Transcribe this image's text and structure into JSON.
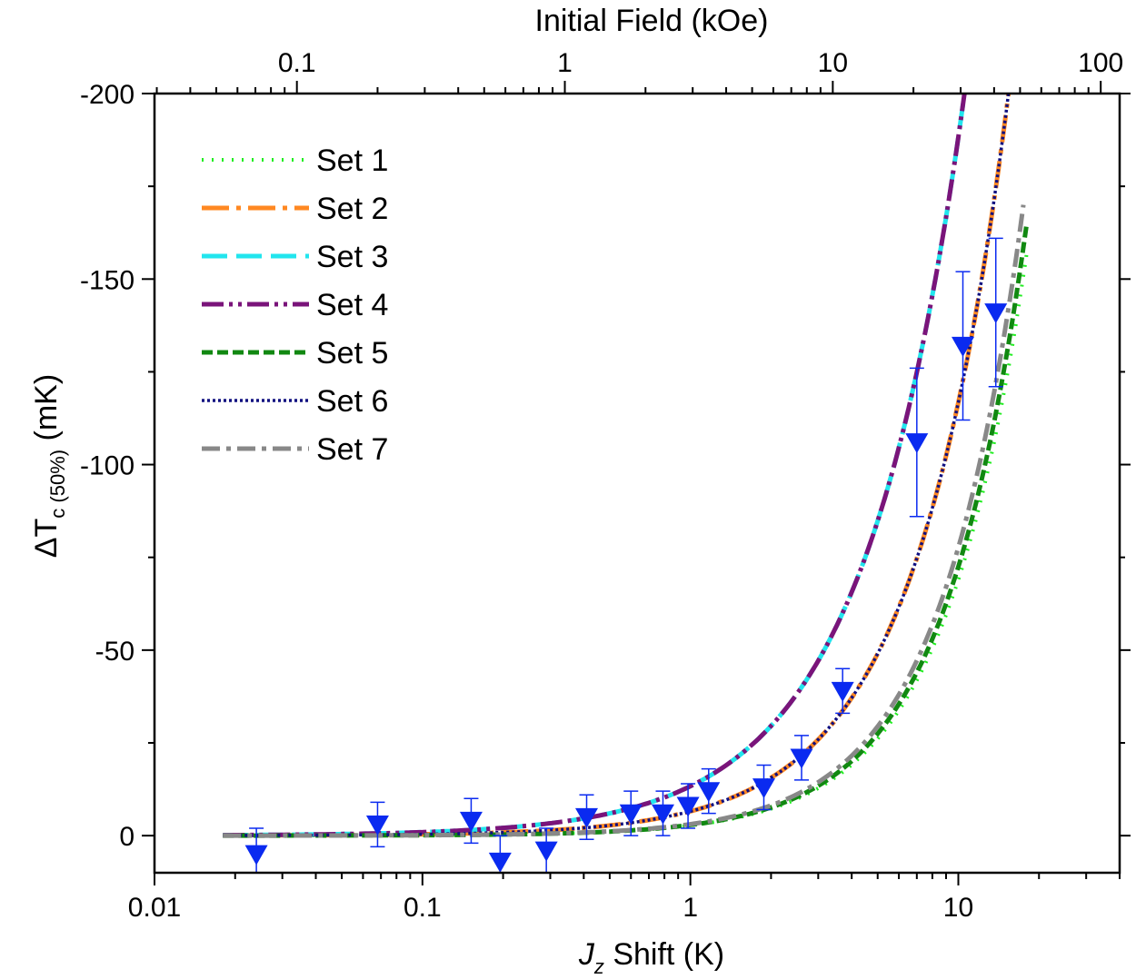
{
  "chart_data": {
    "type": "scatter",
    "x_scale": "log",
    "xlim": [
      0.01,
      40
    ],
    "ylim": [
      10,
      -200
    ],
    "y_inverted": true,
    "xlabel": {
      "italic": "J",
      "sub": "z",
      "rest": " Shift (K)"
    },
    "top_xlabel": "Initial Field (kOe)",
    "ylabel": {
      "delta": "Δ",
      "main": "T",
      "sub": "c (50%)",
      "rest": " (mK)"
    },
    "x_ticks": [
      {
        "value": 0.01,
        "label": "0.01"
      },
      {
        "value": 0.1,
        "label": "0.1"
      },
      {
        "value": 1,
        "label": "1"
      },
      {
        "value": 10,
        "label": "10"
      }
    ],
    "y_ticks": [
      {
        "value": 0,
        "label": "0"
      },
      {
        "value": -50,
        "label": "-50"
      },
      {
        "value": -100,
        "label": "-100"
      },
      {
        "value": -150,
        "label": "-150"
      },
      {
        "value": -200,
        "label": "-200"
      }
    ],
    "top_ticks": [
      {
        "field_kOe": 0.1,
        "x_shift": 0.034,
        "label": "0.1"
      },
      {
        "field_kOe": 1,
        "x_shift": 0.34,
        "label": "1"
      },
      {
        "field_kOe": 10,
        "x_shift": 3.4,
        "label": "10"
      },
      {
        "field_kOe": 100,
        "x_shift": 34,
        "label": "100"
      }
    ],
    "legend_placement": "top-left",
    "series": [
      {
        "name": "Set 1",
        "color": "#22ee22",
        "dash": "dotted",
        "x_end": 18,
        "y_end": -157,
        "exponent": 1.4
      },
      {
        "name": "Set 2",
        "color": "#ff8822",
        "dash": "long-dash-dot",
        "x_end": 16,
        "y_end": -210,
        "exponent": 1.25
      },
      {
        "name": "Set 3",
        "color": "#22e5ee",
        "dash": "long-dash",
        "x_end": 11,
        "y_end": -210,
        "exponent": 1.15
      },
      {
        "name": "Set 4",
        "color": "#7a147a",
        "dash": "dash-dot-dot",
        "x_end": 11,
        "y_end": -210,
        "exponent": 1.15
      },
      {
        "name": "Set 5",
        "color": "#118811",
        "dash": "short-dash",
        "x_end": 18,
        "y_end": -165,
        "exponent": 1.4
      },
      {
        "name": "Set 6",
        "color": "#101080",
        "dash": "dense-dotted",
        "x_end": 16,
        "y_end": -210,
        "exponent": 1.25
      },
      {
        "name": "Set 7",
        "color": "#888888",
        "dash": "dash-dot",
        "x_end": 17.5,
        "y_end": -170,
        "exponent": 1.4
      }
    ],
    "curve_x_start": 0.018,
    "measured": {
      "marker": "down-triangle",
      "color": "#0a2af0",
      "points": [
        {
          "x": 0.024,
          "y": 5,
          "err": 7
        },
        {
          "x": 0.068,
          "y": -3,
          "err": 6
        },
        {
          "x": 0.152,
          "y": -4,
          "err": 6
        },
        {
          "x": 0.195,
          "y": 7,
          "err": 7
        },
        {
          "x": 0.29,
          "y": 4,
          "err": 6
        },
        {
          "x": 0.41,
          "y": -5,
          "err": 6
        },
        {
          "x": 0.6,
          "y": -6,
          "err": 6
        },
        {
          "x": 0.79,
          "y": -6,
          "err": 6
        },
        {
          "x": 0.98,
          "y": -8,
          "err": 6
        },
        {
          "x": 1.17,
          "y": -12,
          "err": 6
        },
        {
          "x": 1.88,
          "y": -13,
          "err": 6
        },
        {
          "x": 2.6,
          "y": -21,
          "err": 6
        },
        {
          "x": 3.7,
          "y": -39,
          "err": 6
        },
        {
          "x": 7.0,
          "y": -106,
          "err": 20
        },
        {
          "x": 10.4,
          "y": -132,
          "err": 20
        },
        {
          "x": 13.8,
          "y": -141,
          "err": 20
        }
      ]
    }
  }
}
